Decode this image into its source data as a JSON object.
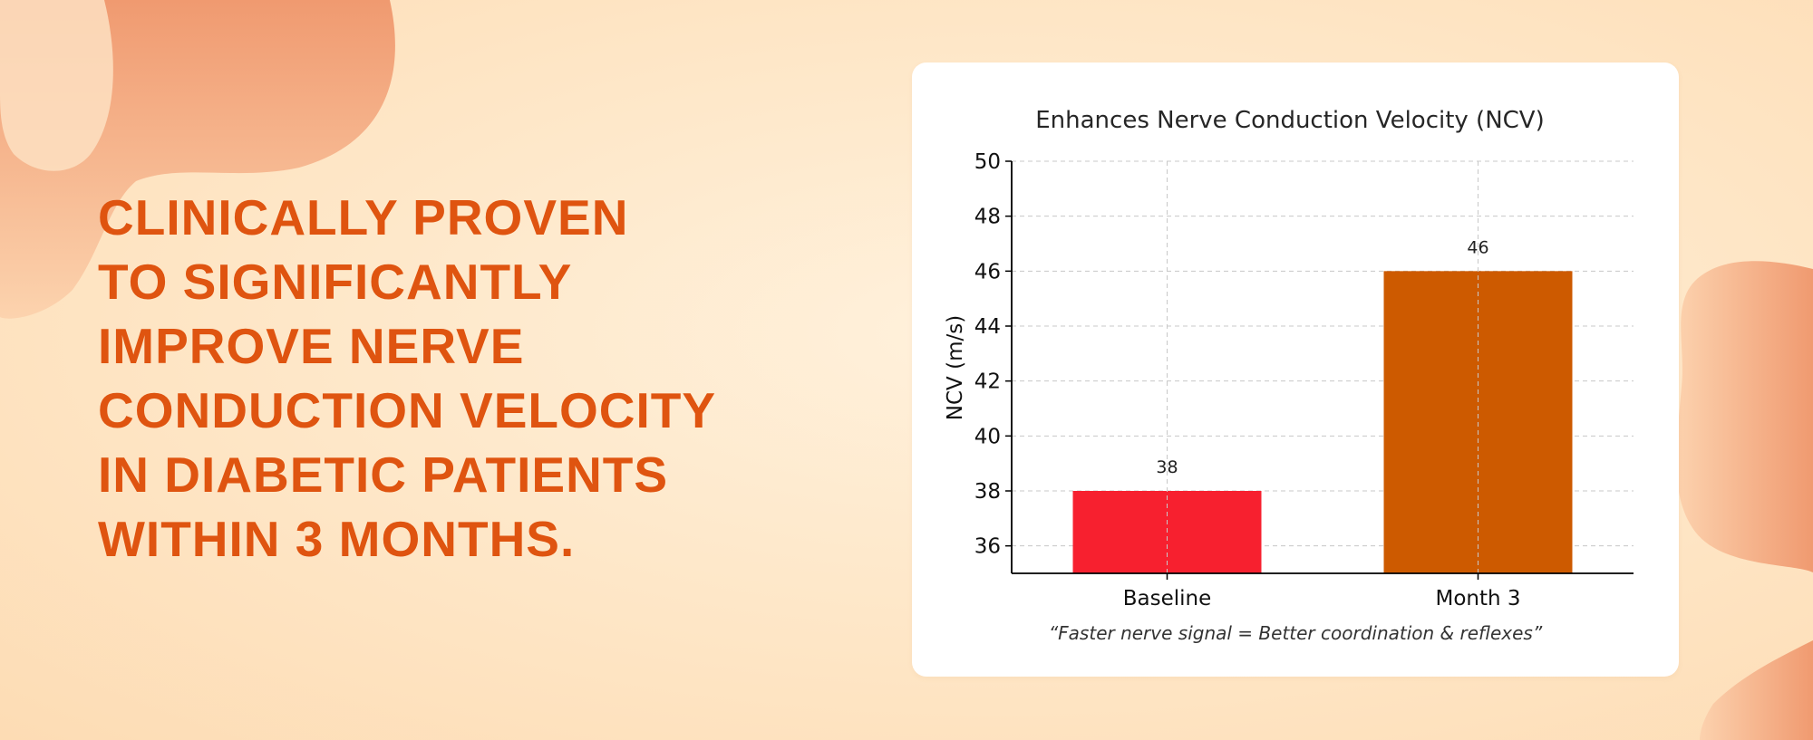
{
  "headline": {
    "lines": [
      "CLINICALLY PROVEN",
      "TO SIGNIFICANTLY",
      "IMPROVE NERVE",
      "CONDUCTION VELOCITY",
      "IN DIABETIC PATIENTS",
      "WITHIN 3 MONTHS."
    ]
  },
  "colors": {
    "headline": "#df5410",
    "bar_baseline": "#f7202f",
    "bar_month3": "#cd5a00",
    "blob": "#f3a076"
  },
  "chart_data": {
    "type": "bar",
    "title": "Enhances Nerve Conduction Velocity (NCV)",
    "xlabel": "",
    "ylabel": "NCV (m/s)",
    "categories": [
      "Baseline",
      "Month 3"
    ],
    "values": [
      38,
      46
    ],
    "data_labels": [
      "38",
      "46"
    ],
    "ylim": [
      35,
      50
    ],
    "yticks": [
      36,
      38,
      40,
      42,
      44,
      46,
      48,
      50
    ],
    "grid": true,
    "caption": "“Faster nerve signal = Better coordination & reflexes”"
  }
}
